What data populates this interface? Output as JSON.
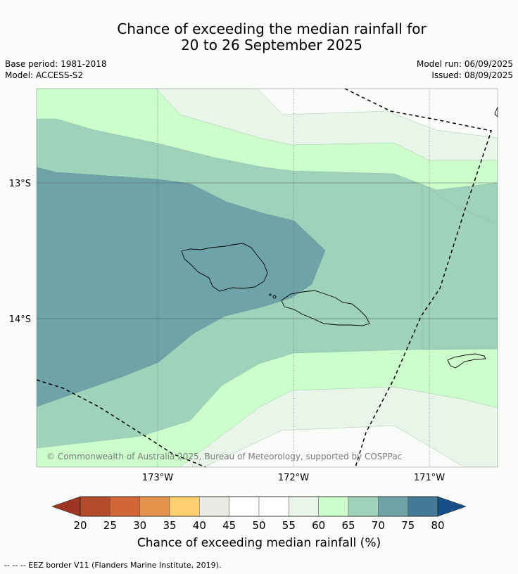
{
  "header": {
    "title_line1": "Chance of exceeding the median rainfall for",
    "title_line2": "20 to 26 September 2025",
    "base_period": "Base period: 1981-2018",
    "model": "Model: ACCESS-S2",
    "model_run": "Model run: 06/09/2025",
    "issued": "Issued: 08/09/2025"
  },
  "map": {
    "lat_labels": [
      "13°S",
      "14°S"
    ],
    "lon_labels": [
      "173°W",
      "172°W",
      "171°W"
    ],
    "copyright": "© Commonwealth of Australia 2025, Bureau of Meteorology, supported by COSPPac"
  },
  "colorbar": {
    "ticks": [
      "20",
      "25",
      "30",
      "35",
      "40",
      "45",
      "50",
      "55",
      "60",
      "65",
      "70",
      "75",
      "80"
    ],
    "label": "Chance of exceeding median rainfall (%)",
    "colors": [
      "#b34a2a",
      "#cf6633",
      "#e2924a",
      "#fdcf6e",
      "#ebe9e4",
      "#ffffff",
      "#ffffff",
      "#eaf5ea",
      "#ccffcc",
      "#9ed2bb",
      "#6ea4a8",
      "#457a96"
    ],
    "under_color": "#9e3422",
    "over_color": "#174f8a"
  },
  "footnote": "--  --  -- EEZ border V11 (Flanders Marine Institute, 2019)."
}
